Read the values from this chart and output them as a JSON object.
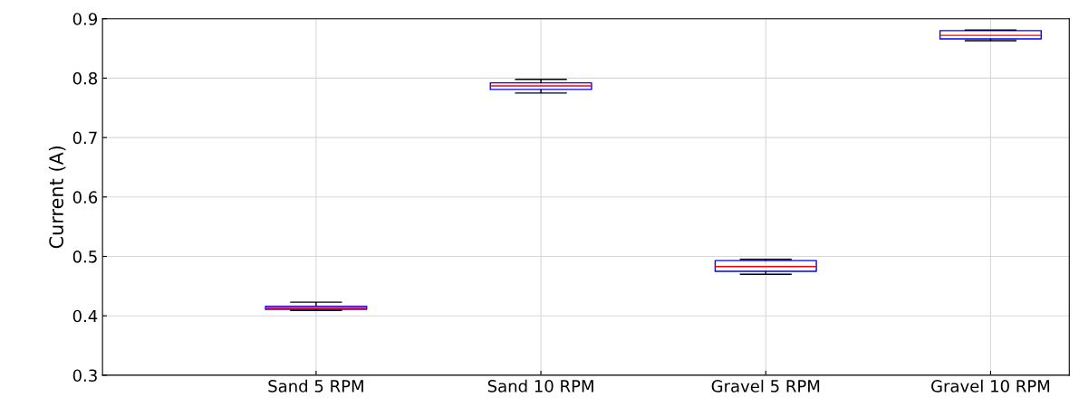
{
  "chart_data": {
    "type": "box",
    "ylabel": "Current (A)",
    "categories": [
      "Sand 5 RPM",
      "Sand 10 RPM",
      "Gravel 5 RPM",
      "Gravel 10 RPM"
    ],
    "boxes": [
      {
        "low": 0.409,
        "q1": 0.411,
        "median": 0.413,
        "q3": 0.416,
        "high": 0.423
      },
      {
        "low": 0.775,
        "q1": 0.781,
        "median": 0.787,
        "q3": 0.792,
        "high": 0.798
      },
      {
        "low": 0.47,
        "q1": 0.475,
        "median": 0.483,
        "q3": 0.493,
        "high": 0.495
      },
      {
        "low": 0.863,
        "q1": 0.866,
        "median": 0.872,
        "q3": 0.88,
        "high": 0.881
      }
    ],
    "color": "#0000ff",
    "ylim": [
      0.3,
      0.9
    ],
    "yticks": [
      0.3,
      0.4,
      0.5,
      0.6,
      0.7,
      0.8,
      0.9
    ],
    "grid": true
  }
}
